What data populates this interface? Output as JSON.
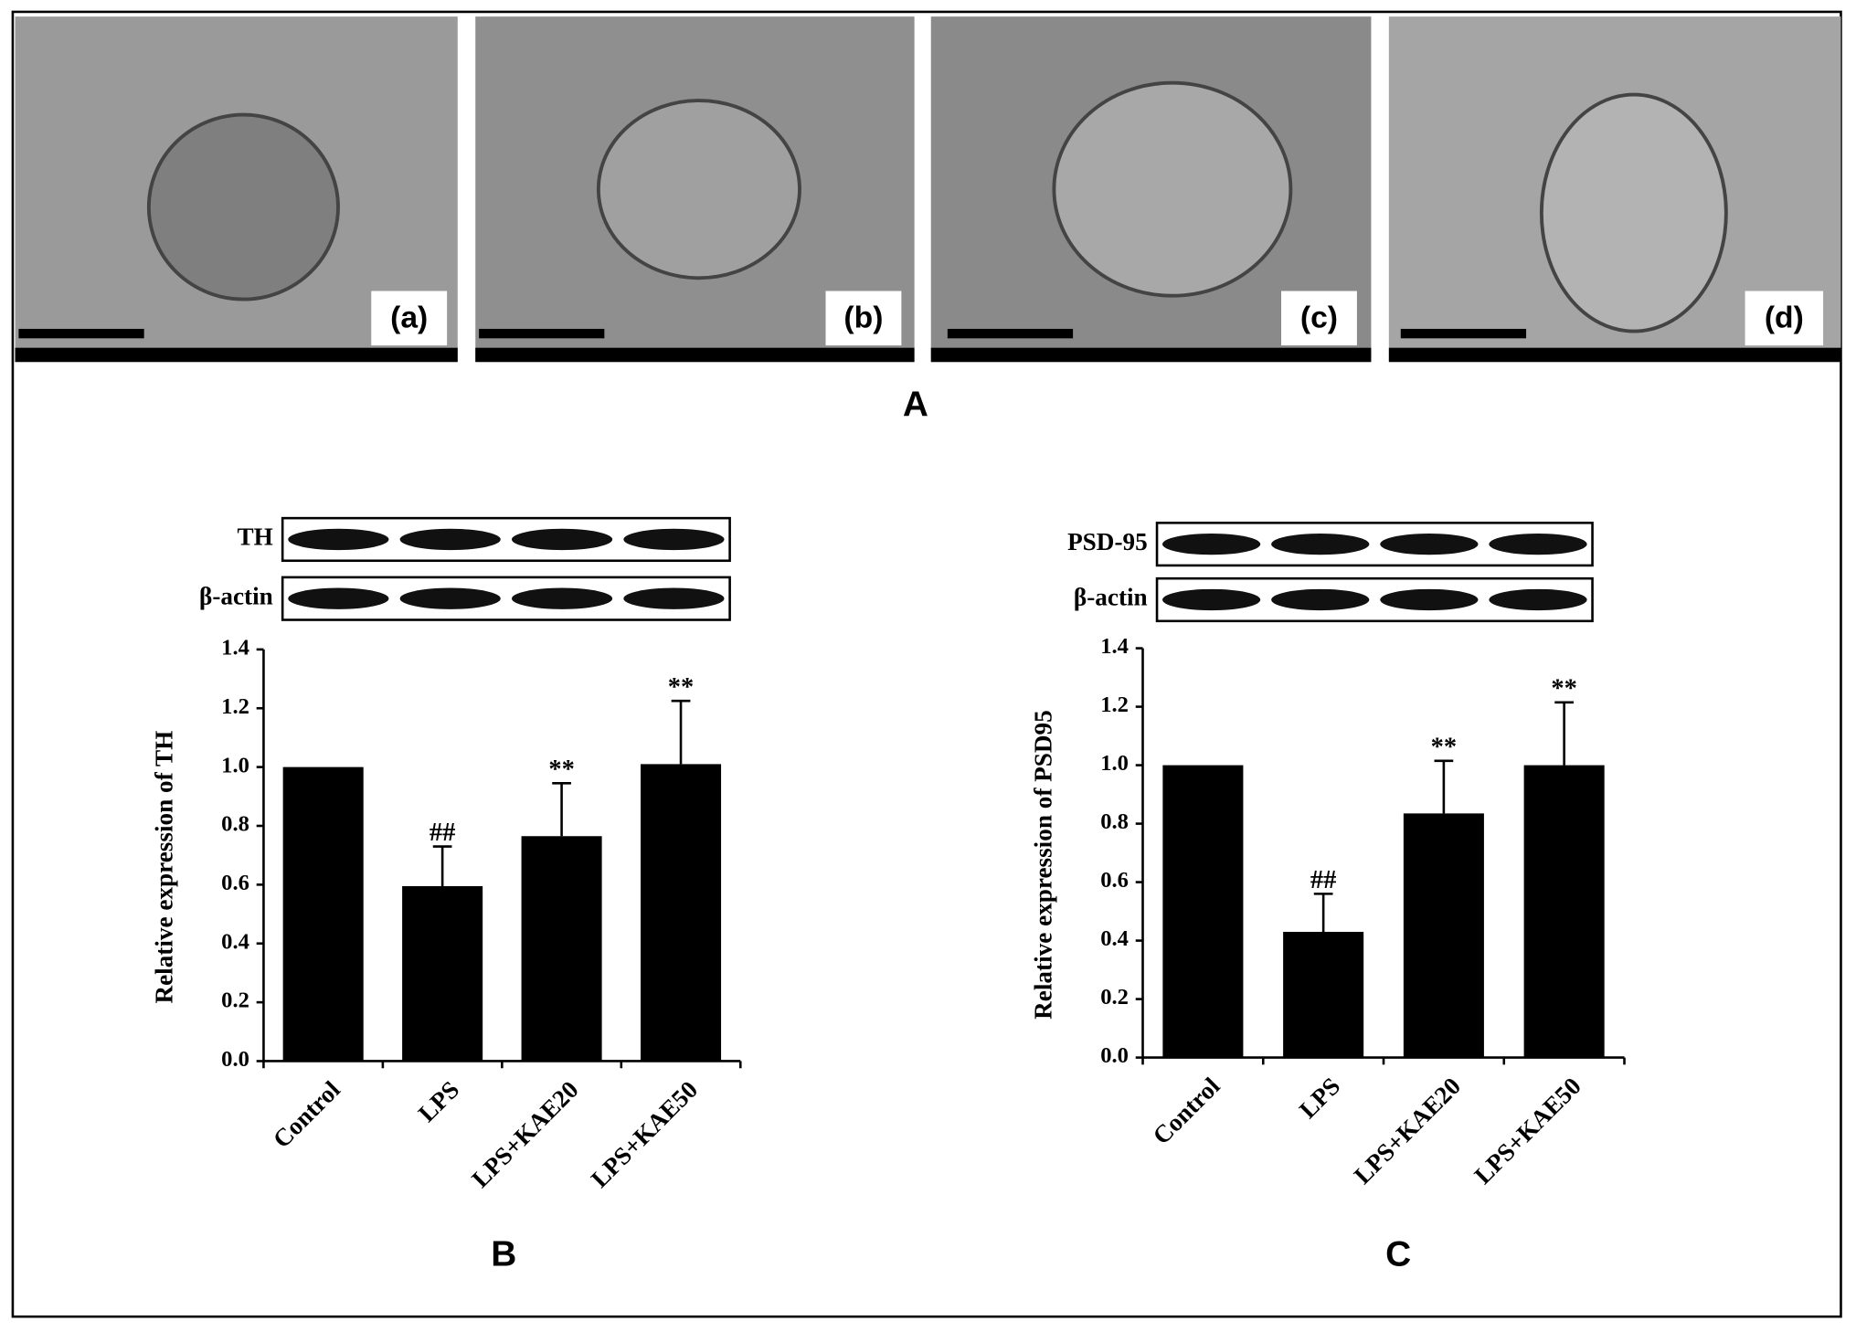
{
  "panel_a": {
    "labels": [
      "(a)",
      "(b)",
      "(c)",
      "(d)"
    ],
    "caption": "A"
  },
  "chart_data": [
    {
      "type": "bar",
      "panel_label": "B",
      "blot_labels": [
        "TH",
        "β-actin"
      ],
      "ylabel": "Relative expression of TH",
      "categories": [
        "Control",
        "LPS",
        "LPS+KAE20",
        "LPS+KAE50"
      ],
      "values": [
        1.0,
        0.595,
        0.765,
        1.01
      ],
      "errors": [
        null,
        0.135,
        0.18,
        0.215
      ],
      "annotations": [
        null,
        "##",
        "**",
        "**"
      ],
      "color": "#000000",
      "ylim": [
        0,
        1.4
      ],
      "yticks": [
        {
          "value": 0,
          "label": "0.0"
        },
        0.2,
        0.4,
        0.6,
        0.8,
        {
          "value": 1,
          "label": "1.0"
        },
        1.2,
        1.4
      ]
    },
    {
      "type": "bar",
      "panel_label": "C",
      "blot_labels": [
        "PSD-95",
        "β-actin"
      ],
      "ylabel": "Relative expression of PSD95",
      "categories": [
        "Control",
        "LPS",
        "LPS+KAE20",
        "LPS+KAE50"
      ],
      "values": [
        1.0,
        0.43,
        0.835,
        1.0
      ],
      "errors": [
        null,
        0.13,
        0.18,
        0.215
      ],
      "annotations": [
        null,
        "##",
        "**",
        "**"
      ],
      "color": "#000000",
      "ylim": [
        0,
        1.4
      ],
      "yticks": [
        {
          "value": 0,
          "label": "0.0"
        },
        0.2,
        0.4,
        0.6,
        0.8,
        {
          "value": 1,
          "label": "1.0"
        },
        1.2,
        1.4
      ]
    }
  ]
}
